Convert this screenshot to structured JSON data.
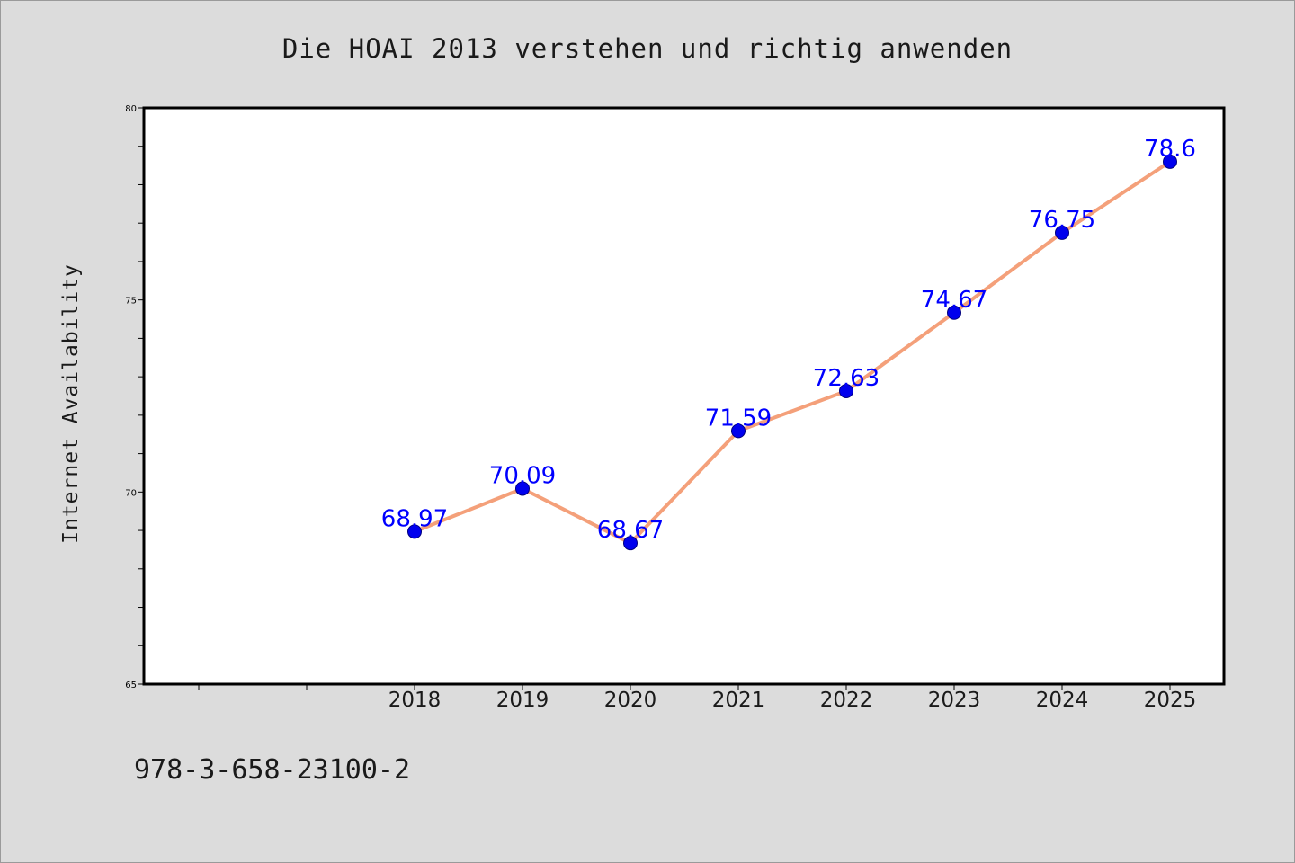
{
  "chart_data": {
    "type": "line",
    "title": "Die HOAI 2013 verstehen und richtig anwenden",
    "xlabel": "",
    "ylabel": "Internet Availability",
    "footer_text": "978-3-658-23100-2",
    "categories": [
      "2018",
      "2019",
      "2020",
      "2021",
      "2022",
      "2023",
      "2024",
      "2025"
    ],
    "series": [
      {
        "values": [
          68.97,
          70.09,
          68.67,
          71.59,
          72.63,
          74.67,
          76.75,
          78.6
        ],
        "data_labels": [
          "68.97",
          "70.09",
          "68.67",
          "71.59",
          "72.63",
          "74.67",
          "76.75",
          "78.6"
        ],
        "line_color": "#f4a07a",
        "marker_color": "#0000ee"
      }
    ],
    "ylim": [
      65,
      80
    ],
    "y_major_ticks": [
      65,
      70,
      75,
      80
    ],
    "y_tick_labels": [
      "65",
      "70",
      "75",
      "80"
    ],
    "y_minor_step": 1,
    "grid": false,
    "legend": "none",
    "label_color": "#0000ff",
    "background_color": "#dcdcdc",
    "plot_background_color": "#ffffff"
  }
}
